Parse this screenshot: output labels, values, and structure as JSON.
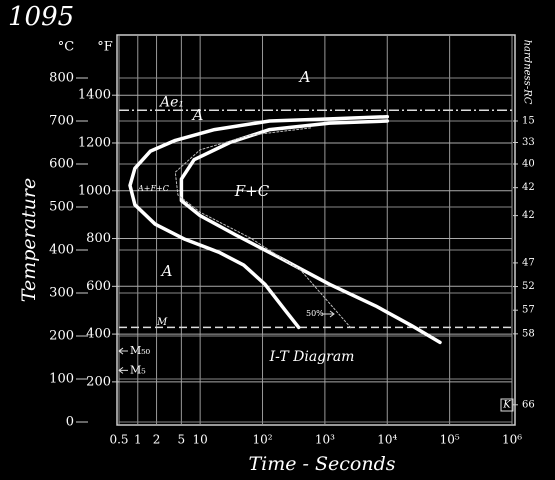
{
  "chart_data": {
    "type": "line",
    "title": "1095",
    "y_unit": "°C",
    "y2_unit": "°F",
    "ylabel": "Temperature",
    "xlabel": "Time - Seconds",
    "log_x": true,
    "grid": true,
    "xlim": [
      0.5,
      1000000
    ],
    "xticks": [
      0.5,
      1,
      2,
      5,
      10,
      {
        "value": 100,
        "label": "10²"
      },
      {
        "value": 1000,
        "label": "10³"
      },
      {
        "value": 10000,
        "label": "10⁴"
      },
      {
        "value": 100000,
        "label": "10⁵"
      },
      {
        "value": 1000000,
        "label": "10⁶"
      }
    ],
    "ylim": [
      0,
      900
    ],
    "yticks": [
      0,
      100,
      200,
      300,
      400,
      500,
      600,
      700,
      800
    ],
    "y2lim": [
      32,
      1652
    ],
    "y2ticks": [
      200,
      400,
      600,
      800,
      1000,
      1200,
      1400
    ],
    "hardness_label": "hardness-RC",
    "hardness_ticks": [
      {
        "value": 700,
        "label": "15"
      },
      {
        "value": 650,
        "label": "33"
      },
      {
        "value": 600,
        "label": "40"
      },
      {
        "value": 545,
        "label": "42"
      },
      {
        "value": 480,
        "label": "42"
      },
      {
        "value": 370,
        "label": "47"
      },
      {
        "value": 315,
        "label": "52"
      },
      {
        "value": 260,
        "label": "57"
      },
      {
        "value": 205,
        "label": "58"
      },
      {
        "value": 40,
        "label": "66"
      }
    ],
    "series": [
      {
        "color": "#ffffff",
        "style": "solid",
        "x": [
          10000,
          1200,
          130,
          17,
          4,
          1.6,
          0.9,
          0.75,
          0.9,
          1.9,
          5.7,
          20,
          50,
          110,
          230,
          380
        ],
        "y": [
          710,
          705,
          700,
          680,
          655,
          630,
          590,
          550,
          505,
          460,
          425,
          395,
          365,
          320,
          260,
          220
        ]
      },
      {
        "color": "#ffffff",
        "style": "solid",
        "x": [
          10000,
          1200,
          130,
          30,
          8,
          5,
          5,
          10,
          37,
          200,
          1200,
          6500,
          24000,
          70000
        ],
        "y": [
          700,
          695,
          680,
          650,
          610,
          565,
          515,
          480,
          435,
          380,
          320,
          270,
          225,
          185
        ]
      },
      {
        "name": "50%",
        "color": "#bbbbbb",
        "style": "dotted",
        "x": [
          590,
          64,
          10,
          4,
          4.4,
          10,
          64,
          410,
          2600
        ],
        "y": [
          684,
          667,
          633,
          581,
          528,
          488,
          428,
          353,
          219
        ]
      }
    ],
    "reference_lines": [
      {
        "label": "Ae₁",
        "value": 725
      },
      {
        "label": "M",
        "value": 220
      }
    ],
    "markers": [
      {
        "label": "M₅₀",
        "value": 165
      },
      {
        "label": "M₅",
        "value": 120
      }
    ],
    "annotations": [
      "A",
      "A",
      "A+F+C",
      "F+C",
      "A",
      "I-T Diagram",
      "K"
    ]
  }
}
